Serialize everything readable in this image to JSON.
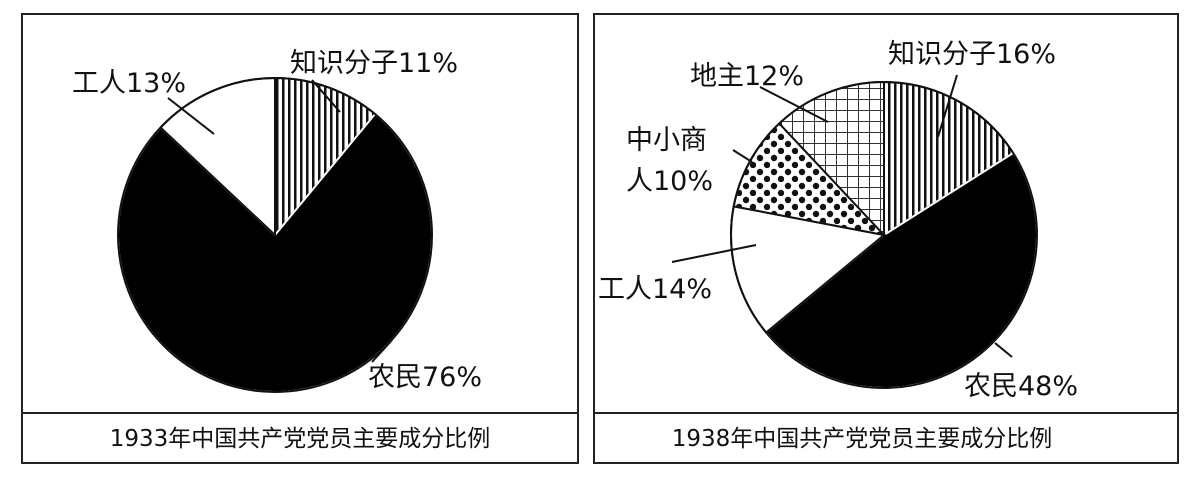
{
  "chart_data": [
    {
      "type": "pie",
      "title": "1933年中国共产党党员主要成分比例",
      "start": "12 o'clock, clockwise",
      "slices": [
        {
          "label": "知识分子",
          "value": 11,
          "text": "知识分子11%",
          "fill": "vertical-stripes"
        },
        {
          "label": "农民",
          "value": 76,
          "text": "农民76%",
          "fill": "#000000"
        },
        {
          "label": "工人",
          "value": 13,
          "text": "工人13%",
          "fill": "#ffffff"
        }
      ]
    },
    {
      "type": "pie",
      "title": "1938年中国共产党党员主要成分比例",
      "start": "12 o'clock, clockwise",
      "slices": [
        {
          "label": "知识分子",
          "value": 16,
          "text": "知识分子16%",
          "fill": "vertical-stripes"
        },
        {
          "label": "农民",
          "value": 48,
          "text": "农民48%",
          "fill": "#000000"
        },
        {
          "label": "工人",
          "value": 14,
          "text": "工人14%",
          "fill": "#ffffff"
        },
        {
          "label": "中小商人",
          "value": 10,
          "text": "中小商人10%",
          "text_lines": [
            "中小商",
            "人10%"
          ],
          "fill": "dots"
        },
        {
          "label": "地主",
          "value": 12,
          "text": "地主12%",
          "fill": "grid"
        }
      ]
    }
  ]
}
